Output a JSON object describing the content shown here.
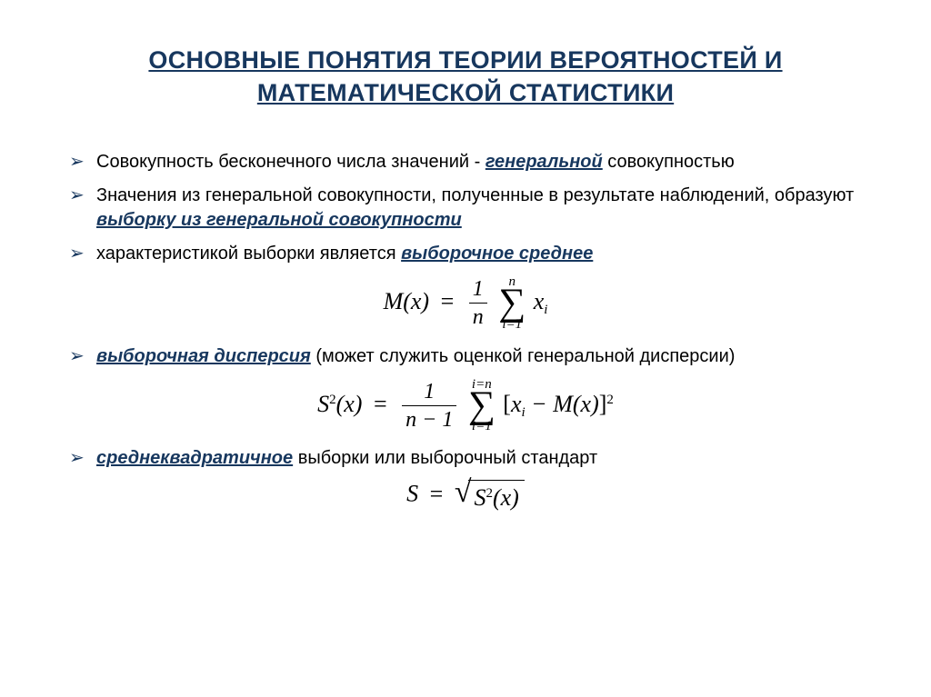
{
  "colors": {
    "heading": "#17375e",
    "bullet_marker": "#17375e",
    "body_text": "#000000",
    "background": "#ffffff"
  },
  "typography": {
    "title_fontsize": 27,
    "body_fontsize": 20,
    "formula_fontsize": 26,
    "title_font": "Arial",
    "formula_font": "Times New Roman"
  },
  "title": "ОСНОВНЫЕ ПОНЯТИЯ ТЕОРИИ ВЕРОЯТНОСТЕЙ И МАТЕМАТИЧЕСКОЙ СТАТИСТИКИ",
  "bullets": {
    "b1": {
      "text_before": "Совокупность бесконечного числа значений - ",
      "term": "генеральной",
      "text_after": " совокупностью"
    },
    "b2": {
      "text_before": "Значения из генеральной совокупности, полученные в результате наблюдений, образуют ",
      "term": "выборку из генеральной совокупности"
    },
    "b3": {
      "text_before": "характеристикой выборки является ",
      "term": "выборочное среднее"
    },
    "b4": {
      "term": "выборочная дисперсия",
      "text_after": " (может служить оценкой генеральной дисперсии)"
    },
    "b5": {
      "term": "среднеквадратичное",
      "text_after": " выборки или выборочный стандарт"
    }
  },
  "formulas": {
    "mean": {
      "lhs": "M(x)",
      "frac_num": "1",
      "frac_den": "n",
      "sum_top": "n",
      "sum_bot": "i=1",
      "rhs_var": "x",
      "rhs_sub": "i"
    },
    "variance": {
      "lhs_base": "S",
      "lhs_sup": "2",
      "lhs_arg": "(x)",
      "frac_num": "1",
      "frac_den": "n − 1",
      "sum_top": "i=n",
      "sum_bot": "i=1",
      "bracket_left": "[",
      "term1_var": "x",
      "term1_sub": "i",
      "minus_term2": " − M(x)",
      "bracket_right": "]",
      "outer_sup": "2"
    },
    "std": {
      "lhs": "S",
      "radicand_base": "S",
      "radicand_sup": "2",
      "radicand_arg": "(x)"
    }
  }
}
